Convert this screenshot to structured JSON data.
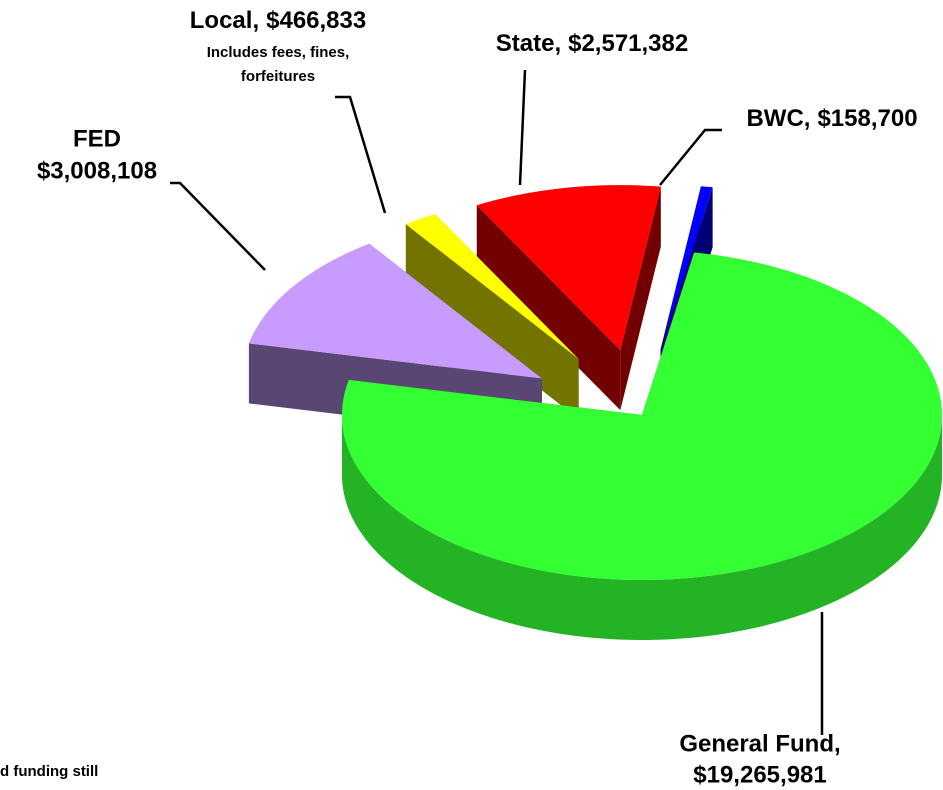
{
  "chart_data": {
    "type": "pie",
    "categories": [
      "General Fund,",
      "FED",
      "Local,",
      "State,",
      "BWC,"
    ],
    "values": [
      19265981,
      3008108,
      466833,
      2571382,
      158700
    ],
    "value_labels": [
      "$19,265,981",
      "$3,008,108",
      "$466,833",
      "$2,571,382",
      "$158,700"
    ],
    "colors": [
      "#33ff33",
      "#c89bff",
      "#ffff00",
      "#ff0000",
      "#0000ff"
    ],
    "annotations": [
      "Includes fees, fines,",
      "forfeitures"
    ],
    "note": "d funding still"
  }
}
